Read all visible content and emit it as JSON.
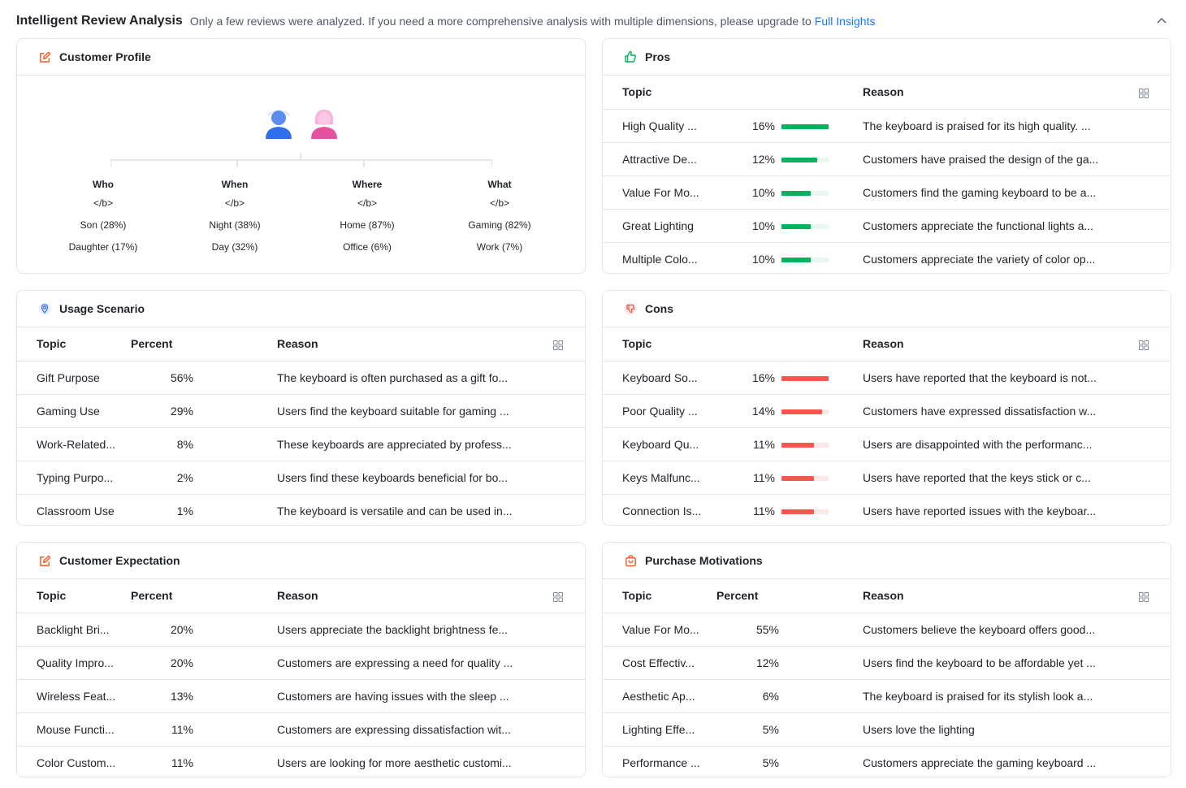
{
  "header": {
    "title": "Intelligent Review Analysis",
    "description": "Only a few reviews were analyzed. If you need a more comprehensive analysis with multiple dimensions, please upgrade to",
    "link_text": "Full Insights"
  },
  "colors": {
    "accent": "#1677ff",
    "pros_bar": "#00b35c",
    "cons_bar": "#f5574f",
    "icon_orange": "#f05a24"
  },
  "columns": {
    "topic": "Topic",
    "percent": "Percent",
    "reason": "Reason"
  },
  "profile": {
    "title": "Customer Profile",
    "groups": [
      {
        "heading": "Who",
        "raw": "</b>",
        "items": [
          "Son (28%)",
          "Daughter (17%)"
        ]
      },
      {
        "heading": "When",
        "raw": "</b>",
        "items": [
          "Night (38%)",
          "Day (32%)"
        ]
      },
      {
        "heading": "Where",
        "raw": "</b>",
        "items": [
          "Home (87%)",
          "Office (6%)"
        ]
      },
      {
        "heading": "What",
        "raw": "</b>",
        "items": [
          "Gaming (82%)",
          "Work (7%)"
        ]
      }
    ]
  },
  "pros": {
    "title": "Pros",
    "rows": [
      {
        "topic": "High Quality ...",
        "percent": "16%",
        "level": 1.0,
        "reason": "The keyboard is praised for its high quality. ..."
      },
      {
        "topic": "Attractive De...",
        "percent": "12%",
        "level": 0.75,
        "reason": "Customers have praised the design of the ga..."
      },
      {
        "topic": "Value For Mo...",
        "percent": "10%",
        "level": 0.62,
        "reason": "Customers find the gaming keyboard to be a..."
      },
      {
        "topic": "Great Lighting",
        "percent": "10%",
        "level": 0.62,
        "reason": "Customers appreciate the functional lights a..."
      },
      {
        "topic": "Multiple Colo...",
        "percent": "10%",
        "level": 0.62,
        "reason": "Customers appreciate the variety of color op..."
      }
    ]
  },
  "usage": {
    "title": "Usage Scenario",
    "rows": [
      {
        "topic": "Gift Purpose",
        "percent": "56%",
        "reason": "The keyboard is often purchased as a gift fo..."
      },
      {
        "topic": "Gaming Use",
        "percent": "29%",
        "reason": "Users find the keyboard suitable for gaming ..."
      },
      {
        "topic": "Work-Related...",
        "percent": "8%",
        "reason": "These keyboards are appreciated by profess..."
      },
      {
        "topic": "Typing Purpo...",
        "percent": "2%",
        "reason": "Users find these keyboards beneficial for bo..."
      },
      {
        "topic": "Classroom Use",
        "percent": "1%",
        "reason": "The keyboard is versatile and can be used in..."
      }
    ]
  },
  "cons": {
    "title": "Cons",
    "rows": [
      {
        "topic": "Keyboard So...",
        "percent": "16%",
        "level": 1.0,
        "reason": "Users have reported that the keyboard is not..."
      },
      {
        "topic": "Poor Quality ...",
        "percent": "14%",
        "level": 0.87,
        "reason": "Customers have expressed dissatisfaction w..."
      },
      {
        "topic": "Keyboard Qu...",
        "percent": "11%",
        "level": 0.69,
        "reason": "Users are disappointed with the performanc..."
      },
      {
        "topic": "Keys Malfunc...",
        "percent": "11%",
        "level": 0.69,
        "reason": "Users have reported that the keys stick or c..."
      },
      {
        "topic": "Connection Is...",
        "percent": "11%",
        "level": 0.69,
        "reason": "Users have reported issues with the keyboar..."
      }
    ]
  },
  "expectation": {
    "title": "Customer Expectation",
    "rows": [
      {
        "topic": "Backlight Bri...",
        "percent": "20%",
        "reason": "Users appreciate the backlight brightness fe..."
      },
      {
        "topic": "Quality Impro...",
        "percent": "20%",
        "reason": "Customers are expressing a need for quality ..."
      },
      {
        "topic": "Wireless Feat...",
        "percent": "13%",
        "reason": "Customers are having issues with the sleep ..."
      },
      {
        "topic": "Mouse Functi...",
        "percent": "11%",
        "reason": "Customers are expressing dissatisfaction wit..."
      },
      {
        "topic": "Color Custom...",
        "percent": "11%",
        "reason": "Users are looking for more aesthetic customi..."
      }
    ]
  },
  "motivations": {
    "title": "Purchase Motivations",
    "rows": [
      {
        "topic": "Value For Mo...",
        "percent": "55%",
        "reason": "Customers believe the keyboard offers good..."
      },
      {
        "topic": "Cost Effectiv...",
        "percent": "12%",
        "reason": "Users find the keyboard to be affordable yet ..."
      },
      {
        "topic": "Aesthetic Ap...",
        "percent": "6%",
        "reason": "The keyboard is praised for its stylish look a..."
      },
      {
        "topic": "Lighting Effe...",
        "percent": "5%",
        "reason": "Users love the lighting"
      },
      {
        "topic": "Performance ...",
        "percent": "5%",
        "reason": "Customers appreciate the gaming keyboard ..."
      }
    ]
  }
}
